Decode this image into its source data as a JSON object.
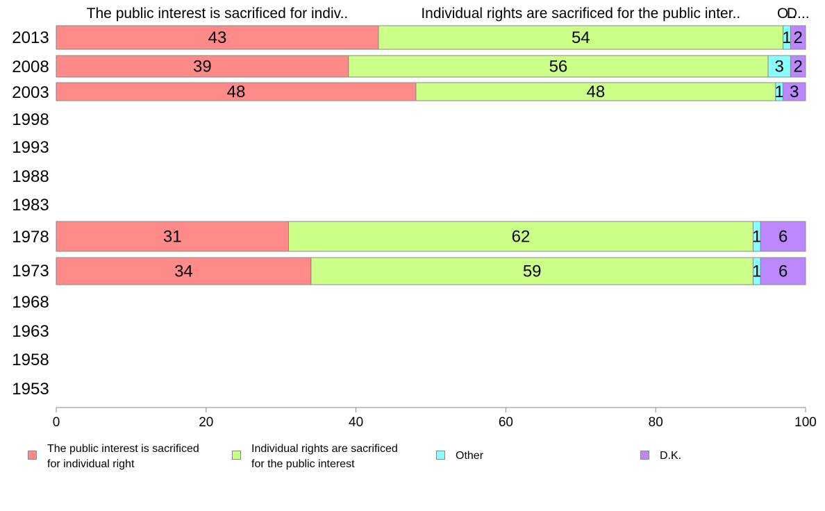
{
  "chart_data": {
    "type": "bar",
    "orientation": "horizontal",
    "stacked": true,
    "categories": [
      "2013",
      "2008",
      "2003",
      "1998",
      "1993",
      "1988",
      "1983",
      "1978",
      "1973",
      "1968",
      "1963",
      "1958",
      "1953"
    ],
    "series": [
      {
        "name": "The public interest is sacrificed for individual right",
        "short_name": "The public interest is sacrificed for indiv..",
        "color": "#fe8a8a",
        "values": [
          43,
          39,
          48,
          null,
          null,
          null,
          null,
          31,
          34,
          null,
          null,
          null,
          null
        ],
        "labels": [
          "43",
          "39",
          "48",
          "",
          "",
          "",
          "",
          "31",
          "34",
          "",
          "",
          "",
          ""
        ]
      },
      {
        "name": "Individual rights are sacrificed for the public interest",
        "short_name": "Individual rights are sacrificed for the public inter..",
        "color": "#ccff88",
        "values": [
          54,
          56,
          48,
          null,
          null,
          null,
          null,
          62,
          59,
          null,
          null,
          null,
          null
        ],
        "labels": [
          "54",
          "56",
          "48",
          "",
          "",
          "",
          "",
          "62",
          "59",
          "",
          "",
          "",
          ""
        ]
      },
      {
        "name": "Other",
        "short_name": "O..",
        "color": "#88ffff",
        "values": [
          1,
          3,
          1,
          null,
          null,
          null,
          null,
          1,
          1,
          null,
          null,
          null,
          null
        ],
        "labels": [
          "1",
          "3",
          "1",
          "",
          "",
          "",
          "",
          "1",
          "1",
          "",
          "",
          "",
          ""
        ]
      },
      {
        "name": "D.K.",
        "short_name": "D...",
        "color": "#bb88ff",
        "values": [
          2,
          2,
          3,
          null,
          null,
          null,
          null,
          6,
          6,
          null,
          null,
          null,
          null
        ],
        "labels": [
          "2",
          "2",
          "3",
          "",
          "",
          "",
          "",
          "6",
          "6",
          "",
          "",
          "",
          ""
        ]
      }
    ],
    "xlim": [
      0,
      100
    ],
    "xticks": [
      "0",
      "20",
      "40",
      "60",
      "80",
      "100"
    ],
    "xlabel": "",
    "ylabel": "",
    "grid": false,
    "legend_position": "bottom"
  },
  "legend": [
    {
      "label": "The public interest is sacrificed\nfor individual right",
      "color": "#fe8a8a"
    },
    {
      "label": "Individual rights are sacrificed\nfor the public interest",
      "color": "#ccff88"
    },
    {
      "label": "Other",
      "color": "#88ffff"
    },
    {
      "label": "D.K.",
      "color": "#bb88ff"
    }
  ]
}
